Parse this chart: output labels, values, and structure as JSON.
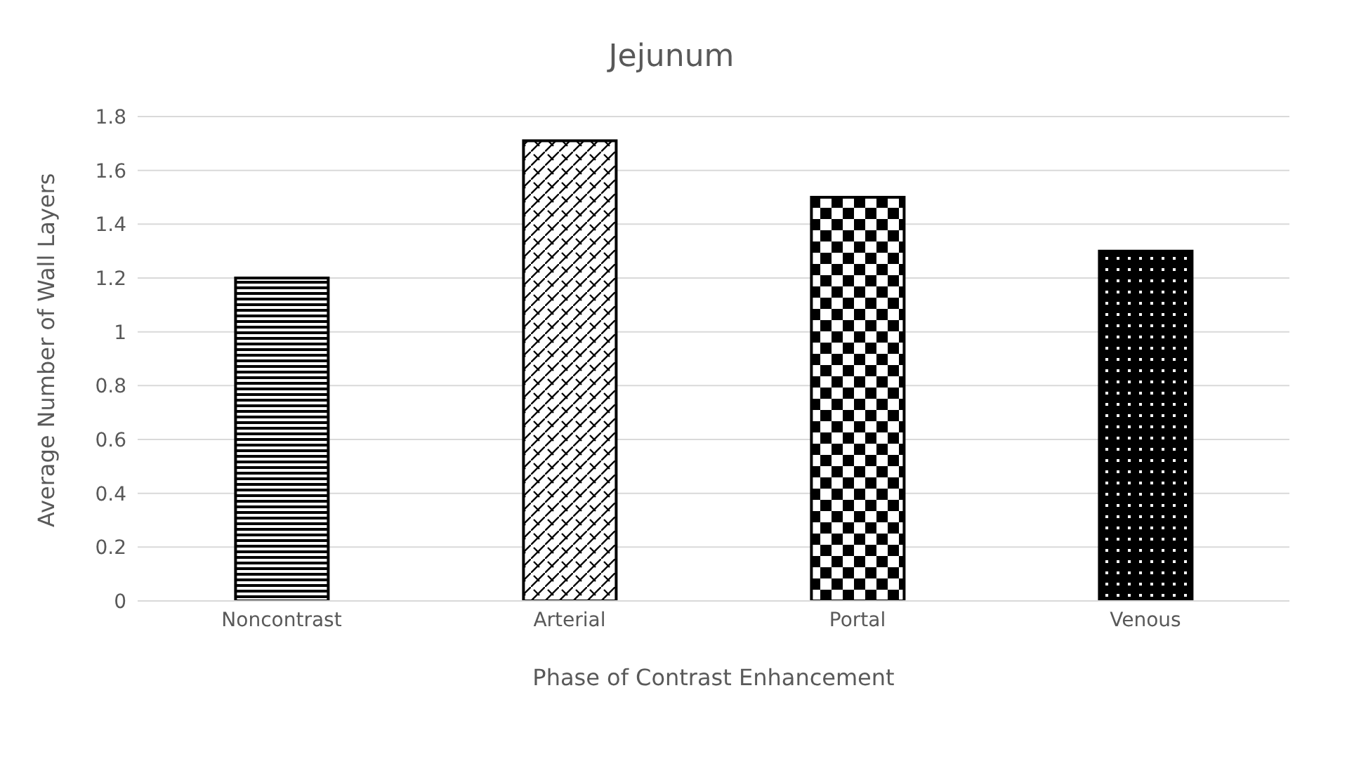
{
  "chart_data": {
    "type": "bar",
    "title": "Jejunum",
    "xlabel": "Phase of Contrast Enhancement",
    "ylabel": "Average Number of Wall Layers",
    "categories": [
      "Noncontrast",
      "Arterial",
      "Portal",
      "Venous"
    ],
    "values": [
      1.2,
      1.71,
      1.5,
      1.3
    ],
    "colors": [
      "#000000",
      "#000000",
      "#000000",
      "#000000"
    ],
    "ylim": [
      0,
      1.8
    ],
    "yticks": [
      0,
      0.2,
      0.4,
      0.6,
      0.8,
      1,
      1.2,
      1.4,
      1.6,
      1.8
    ],
    "grid": "y"
  }
}
